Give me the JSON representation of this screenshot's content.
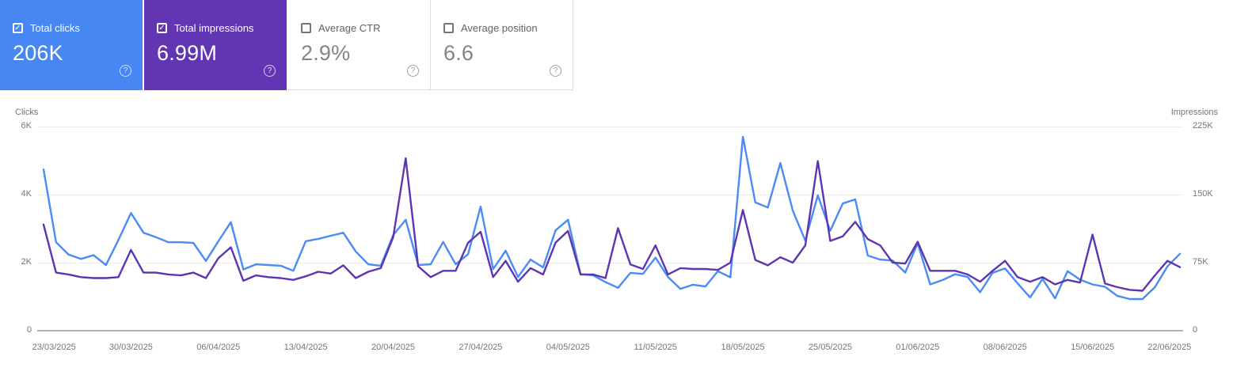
{
  "icons": {
    "checkmark": "✓",
    "help": "?"
  },
  "cards": {
    "total_clicks": {
      "label": "Total clicks",
      "value": "206K",
      "selected": true,
      "bg_color": "#4687f4"
    },
    "total_impressions": {
      "label": "Total impressions",
      "value": "6.99M",
      "selected": true,
      "bg_color": "#6236b2"
    },
    "average_ctr": {
      "label": "Average CTR",
      "value": "2.9%",
      "selected": false,
      "bg_color": "#ffffff"
    },
    "average_position": {
      "label": "Average position",
      "value": "6.6",
      "selected": false,
      "bg_color": "#ffffff"
    }
  },
  "chart_data": {
    "type": "line",
    "grid": "horizontal",
    "points_per_series": 92,
    "date_start": "23/03/2025",
    "date_end": "22/06/2025",
    "x_tick_labels": [
      "23/03/2025",
      "30/03/2025",
      "06/04/2025",
      "13/04/2025",
      "20/04/2025",
      "27/04/2025",
      "04/05/2025",
      "11/05/2025",
      "18/05/2025",
      "25/05/2025",
      "01/06/2025",
      "08/06/2025",
      "15/06/2025",
      "22/06/2025"
    ],
    "left_axis": {
      "title": "Clicks",
      "tick_labels": [
        "6K",
        "4K",
        "2K",
        "0"
      ],
      "max": 6000,
      "min": 0
    },
    "right_axis": {
      "title": "Impressions",
      "tick_labels": [
        "225K",
        "150K",
        "75K",
        "0"
      ],
      "max": 225000,
      "min": 0
    },
    "series": [
      {
        "name": "Clicks",
        "axis": "left",
        "color": "#4a8bf5",
        "values": [
          4740,
          2600,
          2240,
          2110,
          2220,
          1930,
          2670,
          3460,
          2880,
          2750,
          2600,
          2600,
          2580,
          2050,
          2630,
          3190,
          1800,
          1950,
          1930,
          1910,
          1760,
          2630,
          2700,
          2790,
          2880,
          2330,
          1950,
          1910,
          2810,
          3260,
          1930,
          1950,
          2610,
          1950,
          2250,
          3650,
          1810,
          2350,
          1580,
          2090,
          1860,
          2950,
          3260,
          1660,
          1630,
          1430,
          1260,
          1700,
          1670,
          2150,
          1580,
          1230,
          1350,
          1300,
          1750,
          1570,
          5700,
          3770,
          3620,
          4930,
          3530,
          2650,
          3980,
          2940,
          3740,
          3860,
          2210,
          2090,
          2060,
          1710,
          2570,
          1360,
          1490,
          1660,
          1580,
          1130,
          1700,
          1830,
          1390,
          980,
          1520,
          950,
          1750,
          1500,
          1360,
          1290,
          1020,
          930,
          930,
          1280,
          1890,
          2260
        ]
      },
      {
        "name": "Impressions",
        "axis": "right",
        "color": "#5e35b1",
        "values": [
          117000,
          64000,
          62000,
          59000,
          58000,
          58000,
          59000,
          89000,
          64000,
          64000,
          62000,
          61000,
          64000,
          58000,
          80000,
          92000,
          55000,
          61000,
          59000,
          58000,
          56000,
          60000,
          65000,
          63000,
          72000,
          58000,
          65000,
          69000,
          103000,
          190000,
          71000,
          59000,
          66000,
          66000,
          97000,
          109000,
          59000,
          77000,
          54000,
          69000,
          62000,
          97000,
          110000,
          62000,
          62000,
          58000,
          113000,
          73000,
          68000,
          94000,
          62000,
          69000,
          68000,
          68000,
          67000,
          75000,
          133000,
          78000,
          72000,
          81000,
          75000,
          94000,
          187000,
          99000,
          104000,
          120000,
          101000,
          94000,
          75000,
          74000,
          98000,
          66000,
          66000,
          66000,
          62000,
          54000,
          66000,
          77000,
          59000,
          54000,
          59000,
          51000,
          56000,
          53000,
          106000,
          52000,
          48000,
          45000,
          44000,
          61000,
          77000,
          70000
        ]
      }
    ]
  }
}
